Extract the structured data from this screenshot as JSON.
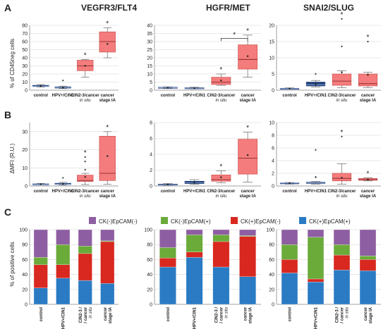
{
  "figure": {
    "panel_labels": [
      "A",
      "B",
      "C"
    ],
    "column_titles": [
      "VEGFR3/FLT4",
      "HGFR/MET",
      "SNAI2/SLUG"
    ],
    "row_ylabels": [
      "% of CD45neg cells",
      "ΔMFI (R.U.)",
      "% of positive cells"
    ],
    "categories": [
      "control",
      "HPV+/CIN1",
      "CIN2-3/cancer in situ",
      "cancer stage IA"
    ],
    "categories_c": [
      "control",
      "HPV+/CIN1",
      "CIN2-3 / cancer in situ",
      "cancer stage IA"
    ],
    "colors": {
      "control_box": "#1f3f7a",
      "other_box": "#f47c7c",
      "box_edge": "#c84848",
      "seg_ck_neg_epcam_neg": "#8e5ea2",
      "seg_ck_neg_epcam_pos": "#6aab3a",
      "seg_ck_pos_epcam_neg": "#d8281f",
      "seg_ck_pos_epcam_pos": "#2a7bc4"
    },
    "legend": [
      "CK(-)EpCAM(-)",
      "CK(-)EpCAM(+)",
      "CK(+)EpCAM(-)",
      "CK(+)EpCAM(+)"
    ],
    "significance_mark": "*"
  },
  "chart_data": [
    {
      "type": "box",
      "panel": "A",
      "title": "VEGFR3/FLT4",
      "ylabel": "% of CD45neg cells",
      "ylim": [
        0,
        80
      ],
      "yticks": [
        0,
        10,
        20,
        30,
        40,
        50,
        60,
        70,
        80
      ],
      "categories": [
        "control",
        "HPV+/CIN1",
        "CIN2-3/cancer in situ",
        "cancer stage IA"
      ],
      "boxes": [
        {
          "min": 4,
          "q1": 4.5,
          "median": 5,
          "q3": 6,
          "max": 7,
          "mean": 5,
          "outliers": [],
          "star": false
        },
        {
          "min": 2,
          "q1": 2.5,
          "median": 3,
          "q3": 4,
          "max": 5,
          "mean": 3,
          "outliers": [
            12
          ],
          "star": false
        },
        {
          "min": 16,
          "q1": 24,
          "median": 30,
          "q3": 37,
          "max": 38,
          "mean": 30,
          "outliers": [],
          "star": true
        },
        {
          "min": 40,
          "q1": 47,
          "median": 60,
          "q3": 72,
          "max": 77,
          "mean": 57,
          "outliers": [],
          "star": true
        }
      ]
    },
    {
      "type": "box",
      "panel": "A",
      "title": "HGFR/MET",
      "ylabel": "",
      "ylim": [
        0,
        40
      ],
      "yticks": [
        0,
        5,
        10,
        15,
        20,
        25,
        30,
        35,
        40
      ],
      "categories": [
        "control",
        "HPV+/CIN1",
        "CIN2-3/cancer in situ",
        "cancer stage IA"
      ],
      "boxes": [
        {
          "min": 1,
          "q1": 1.2,
          "median": 1.5,
          "q3": 1.8,
          "max": 2,
          "mean": 1.5,
          "outliers": [],
          "star": false
        },
        {
          "min": 0.8,
          "q1": 1,
          "median": 1.2,
          "q3": 1.5,
          "max": 1.8,
          "mean": 1.2,
          "outliers": [],
          "star": false
        },
        {
          "min": 3,
          "q1": 3.5,
          "median": 5,
          "q3": 8,
          "max": 10,
          "mean": 6,
          "outliers": [],
          "star": true
        },
        {
          "min": 8,
          "q1": 13,
          "median": 19,
          "q3": 28,
          "max": 34,
          "mean": 21,
          "outliers": [],
          "star": true
        }
      ],
      "bracket": {
        "from": 2,
        "to": 3,
        "label": "*"
      }
    },
    {
      "type": "box",
      "panel": "A",
      "title": "SNAI2/SLUG",
      "ylabel": "",
      "ylim": [
        0,
        20
      ],
      "yticks": [
        0,
        5,
        10,
        15,
        20
      ],
      "categories": [
        "control",
        "HPV+/CIN1",
        "CIN2-3/cancer in situ",
        "cancer stage IA"
      ],
      "boxes": [
        {
          "min": 0.3,
          "q1": 0.4,
          "median": 0.5,
          "q3": 0.6,
          "max": 0.7,
          "mean": 0.5,
          "outliers": [],
          "star": false
        },
        {
          "min": 1,
          "q1": 1.3,
          "median": 1.7,
          "q3": 2.5,
          "max": 3,
          "mean": 1.8,
          "outliers": [
            5
          ],
          "star": false
        },
        {
          "min": 0.8,
          "q1": 1.5,
          "median": 2.8,
          "q3": 5,
          "max": 6,
          "mean": 5.5,
          "outliers": [
            13.5,
            22
          ],
          "star": true
        },
        {
          "min": 0.8,
          "q1": 1.3,
          "median": 2,
          "q3": 5,
          "max": 5.5,
          "mean": 4.7,
          "outliers": [
            15
          ],
          "star": true
        }
      ]
    },
    {
      "type": "box",
      "panel": "B",
      "title": "",
      "ylabel": "ΔMFI (R.U.)",
      "ylim": [
        0,
        35
      ],
      "yticks": [
        0,
        10,
        20,
        30
      ],
      "categories": [
        "control",
        "HPV+/CIN1",
        "CIN2-3/cancer in situ",
        "cancer stage IA"
      ],
      "boxes": [
        {
          "min": 0.8,
          "q1": 0.9,
          "median": 1,
          "q3": 1.2,
          "max": 1.4,
          "mean": 1,
          "outliers": [],
          "star": false
        },
        {
          "min": 0.5,
          "q1": 0.8,
          "median": 1,
          "q3": 1.5,
          "max": 2,
          "mean": 1.2,
          "outliers": [
            4.5
          ],
          "star": false
        },
        {
          "min": 0.8,
          "q1": 2.5,
          "median": 3,
          "q3": 6,
          "max": 7,
          "mean": 5,
          "outliers": [
            9,
            13.5,
            16
          ],
          "star": true
        },
        {
          "min": 1,
          "q1": 3,
          "median": 7,
          "q3": 27.5,
          "max": 30,
          "mean": 16.5,
          "outliers": [],
          "star": true
        }
      ]
    },
    {
      "type": "box",
      "panel": "B",
      "title": "",
      "ylabel": "",
      "ylim": [
        0,
        8
      ],
      "yticks": [
        0,
        2,
        4,
        6,
        8
      ],
      "categories": [
        "control",
        "HPV+/CIN1",
        "CIN2-3/cancer in situ",
        "cancer stage IA"
      ],
      "boxes": [
        {
          "min": 0.1,
          "q1": 0.15,
          "median": 0.2,
          "q3": 0.25,
          "max": 0.3,
          "mean": 0.2,
          "outliers": [],
          "star": false
        },
        {
          "min": 0.2,
          "q1": 0.3,
          "median": 0.4,
          "q3": 0.6,
          "max": 0.8,
          "mean": 0.45,
          "outliers": [],
          "star": false
        },
        {
          "min": 0.4,
          "q1": 0.6,
          "median": 0.8,
          "q3": 1.4,
          "max": 1.9,
          "mean": 1.1,
          "outliers": [],
          "star": true
        },
        {
          "min": 0.5,
          "q1": 1.5,
          "median": 3.5,
          "q3": 5.9,
          "max": 6.8,
          "mean": 3.9,
          "outliers": [],
          "star": true
        }
      ]
    },
    {
      "type": "box",
      "panel": "B",
      "title": "",
      "ylabel": "",
      "ylim": [
        0,
        10
      ],
      "yticks": [
        0,
        2,
        4,
        6,
        8,
        10
      ],
      "categories": [
        "control",
        "HPV+/CIN1",
        "CIN2-3/cancer in situ",
        "cancer stage IA"
      ],
      "boxes": [
        {
          "min": 0.3,
          "q1": 0.4,
          "median": 0.45,
          "q3": 0.5,
          "max": 0.55,
          "mean": 0.45,
          "outliers": [],
          "star": false
        },
        {
          "min": 0.3,
          "q1": 0.4,
          "median": 0.5,
          "q3": 0.6,
          "max": 0.7,
          "mean": 1.4,
          "outliers": [
            5.7
          ],
          "star": false
        },
        {
          "min": 0.3,
          "q1": 0.8,
          "median": 1.2,
          "q3": 2,
          "max": 3.5,
          "mean": 1.3,
          "outliers": [
            7.8
          ],
          "star": true
        },
        {
          "min": 0.8,
          "q1": 0.9,
          "median": 1,
          "q3": 1.2,
          "max": 1.3,
          "mean": 1,
          "outliers": [],
          "star": true
        }
      ]
    },
    {
      "type": "stacked_bar",
      "panel": "C",
      "ylabel": "% of positive cells",
      "ylim": [
        0,
        100
      ],
      "yticks": [
        0,
        20,
        40,
        60,
        80,
        100
      ],
      "categories": [
        "control",
        "HPV+/CIN1",
        "CIN2-3 / cancer in situ",
        "cancer stage IA"
      ],
      "series": [
        {
          "name": "CK(+)EpCAM(+)",
          "values": [
            22,
            35,
            32,
            28
          ]
        },
        {
          "name": "CK(+)EpCAM(-)",
          "values": [
            31,
            18,
            36,
            56
          ]
        },
        {
          "name": "CK(-)EpCAM(+)",
          "values": [
            10,
            27,
            10,
            1
          ]
        },
        {
          "name": "CK(-)EpCAM(-)",
          "values": [
            37,
            20,
            22,
            15
          ]
        }
      ]
    },
    {
      "type": "stacked_bar",
      "panel": "C",
      "ylabel": "",
      "ylim": [
        0,
        100
      ],
      "yticks": [
        0,
        20,
        40,
        60,
        80,
        100
      ],
      "categories": [
        "control",
        "HPV+/CIN1",
        "CIN2-3 / cancer in situ",
        "cancer stage IA"
      ],
      "series": [
        {
          "name": "CK(+)EpCAM(+)",
          "values": [
            50,
            63,
            50,
            37
          ]
        },
        {
          "name": "CK(+)EpCAM(-)",
          "values": [
            12,
            7,
            34,
            54
          ]
        },
        {
          "name": "CK(-)EpCAM(+)",
          "values": [
            14,
            23,
            9,
            1
          ]
        },
        {
          "name": "CK(-)EpCAM(-)",
          "values": [
            24,
            7,
            7,
            8
          ]
        }
      ]
    },
    {
      "type": "stacked_bar",
      "panel": "C",
      "ylabel": "",
      "ylim": [
        0,
        100
      ],
      "yticks": [
        0,
        20,
        40,
        60,
        80,
        100
      ],
      "categories": [
        "control",
        "HPV+/CIN1",
        "CIN2-3 / cancer in situ",
        "cancer stage IA"
      ],
      "series": [
        {
          "name": "CK(+)EpCAM(+)",
          "values": [
            42,
            30,
            46,
            45
          ]
        },
        {
          "name": "CK(+)EpCAM(-)",
          "values": [
            18,
            4,
            20,
            15
          ]
        },
        {
          "name": "CK(-)EpCAM(+)",
          "values": [
            20,
            56,
            14,
            5
          ]
        },
        {
          "name": "CK(-)EpCAM(-)",
          "values": [
            20,
            10,
            20,
            35
          ]
        }
      ]
    }
  ]
}
